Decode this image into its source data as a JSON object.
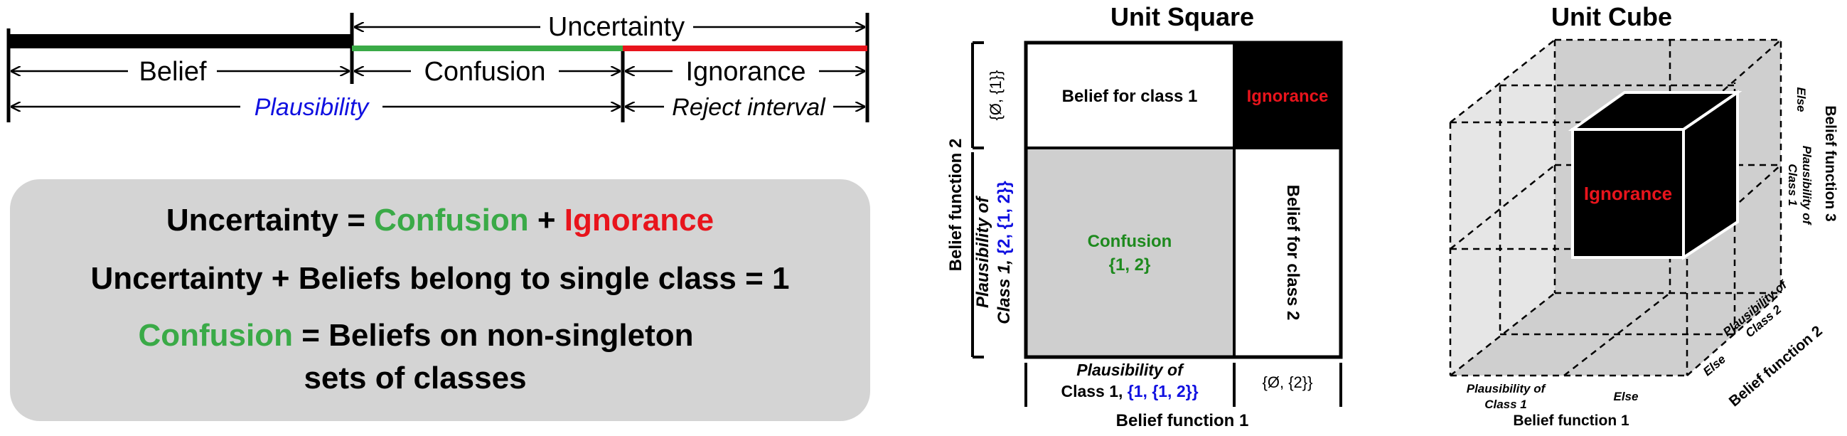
{
  "colors": {
    "green": "#3aaa47",
    "red": "#e8141c",
    "blue": "#1010e0",
    "dark_green": "#1e8a1e",
    "gray_fill": "#cfcfcf",
    "light_gray": "#e6e6e6",
    "black": "#000000"
  },
  "timeline": {
    "uncertainty": "Uncertainty",
    "belief": "Belief",
    "confusion": "Confusion",
    "ignorance": "Ignorance",
    "plausibility": "Plausibility",
    "reject_interval": "Reject interval"
  },
  "equations": {
    "line1": {
      "lhs": "Uncertainty = ",
      "confusion": "Confusion",
      "plus": " + ",
      "ignorance": "Ignorance"
    },
    "line2": "Uncertainty + Beliefs belong to single class = 1",
    "line3": {
      "confusion": "Confusion",
      "rest": " = Beliefs on non-singleton"
    },
    "line4": "sets of classes"
  },
  "unit_square": {
    "title": "Unit Square",
    "top_left": "Belief for class 1",
    "top_right": "Ignorance",
    "bottom_left_line1": "Confusion",
    "bottom_left_line2": "{1, 2}",
    "bottom_right": "Belief for class 2",
    "y_axis_title": "Belief function 2",
    "y_top_label": "{Ø, {1}}",
    "y_bottom_label_line1": "Plausibility of",
    "y_bottom_label_line2_prefix": "Class 1, ",
    "y_bottom_label_line2_set": "{2, {1, 2}}",
    "x_axis_title": "Belief function 1",
    "x_left_label_line1": "Plausibility of",
    "x_left_label_line2_prefix": "Class 1, ",
    "x_left_label_line2_set": "{1, {1, 2}}",
    "x_right_label": "{Ø, {2}}"
  },
  "unit_cube": {
    "title": "Unit Cube",
    "cube_label": "Ignorance",
    "axis1_title": "Belief function 1",
    "axis1_label_plaus_line1": "Plausibility of",
    "axis1_label_plaus_line2": "Class 1",
    "axis1_label_else": "Else",
    "axis2_title": "Belief function 2",
    "axis2_label_plaus_line1": "Plausibility of",
    "axis2_label_plaus_line2": "Class 2",
    "axis2_label_else": "Else",
    "axis3_title": "Belief function 3",
    "axis3_label_plaus_line1": "Plausibility of",
    "axis3_label_plaus_line2": "Class 1",
    "axis3_label_else": "Else"
  }
}
